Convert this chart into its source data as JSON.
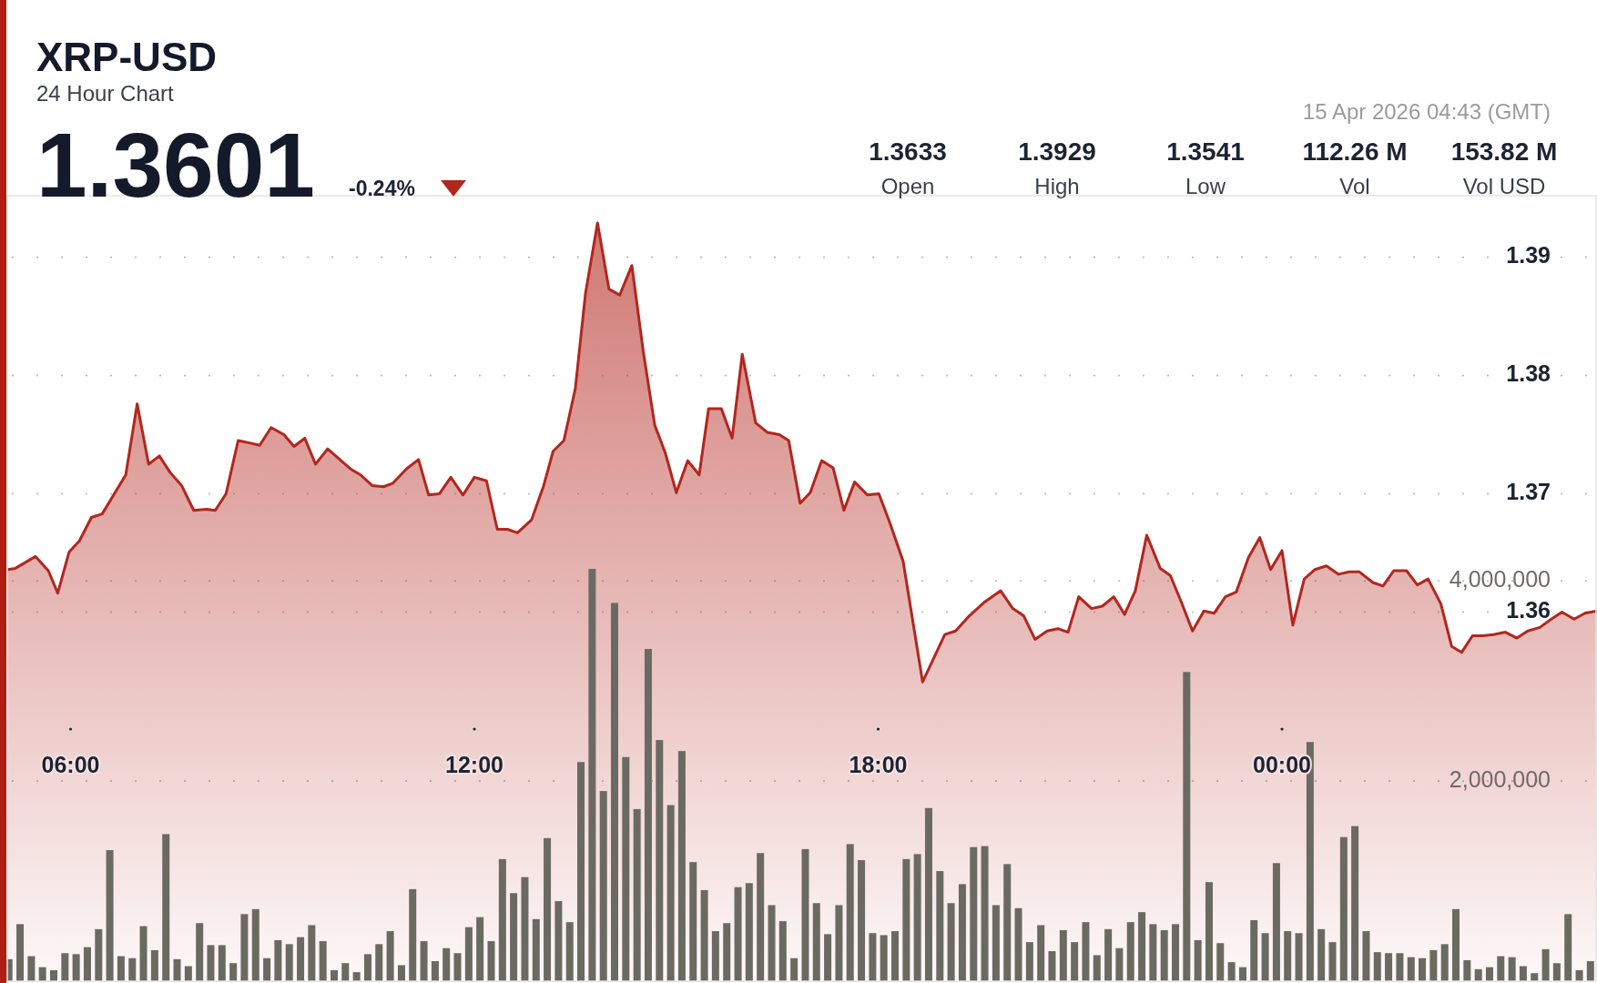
{
  "chart_data": {
    "type": "area",
    "title": "XRP-USD",
    "subtitle": "24 Hour Chart",
    "annotations": [
      "15 Apr 2026 04:43 (GMT)",
      "1.3601",
      "-0.24%",
      "1.3633",
      "Open",
      "1.3929",
      "High",
      "1.3541",
      "Low",
      "112.26 M",
      "Vol",
      "153.82 M",
      "Vol USD"
    ],
    "xlim": [
      5.06,
      28.68
    ],
    "xticks": [
      {
        "value": 6,
        "label": "06:00"
      },
      {
        "value": 12,
        "label": "12:00"
      },
      {
        "value": 18,
        "label": "18:00"
      },
      {
        "value": 24,
        "label": "00:00"
      }
    ],
    "ylim": [
      1.3288,
      1.3952
    ],
    "yticks": [
      1.36,
      1.37,
      1.38,
      1.39
    ],
    "y2lim": [
      0,
      7850000
    ],
    "y2ticks": [
      {
        "value": 2000000,
        "label": "2,000,000"
      },
      {
        "value": 4000000,
        "label": "4,000,000"
      }
    ],
    "grid": "y",
    "series": [
      {
        "color": "#b3261e",
        "x": [
          5.07,
          5.18,
          5.48,
          5.67,
          5.81,
          5.98,
          6.13,
          6.31,
          6.47,
          6.82,
          6.99,
          7.16,
          7.32,
          7.48,
          7.65,
          7.83,
          8.02,
          8.15,
          8.31,
          8.49,
          8.66,
          8.81,
          8.98,
          9.17,
          9.32,
          9.48,
          9.64,
          9.82,
          10.16,
          10.31,
          10.48,
          10.65,
          10.79,
          10.99,
          11.17,
          11.32,
          11.48,
          11.65,
          11.83,
          12.0,
          12.18,
          12.34,
          12.49,
          12.64,
          12.85,
          13.03,
          13.17,
          13.33,
          13.5,
          13.65,
          13.83,
          14.0,
          14.16,
          14.34,
          14.51,
          14.68,
          14.84,
          15.0,
          15.17,
          15.34,
          15.48,
          15.67,
          15.83,
          15.98,
          16.18,
          16.35,
          16.53,
          16.67,
          16.84,
          16.99,
          17.16,
          17.33,
          17.49,
          17.65,
          17.84,
          18.01,
          18.17,
          18.37,
          18.66,
          18.99,
          19.15,
          19.34,
          19.57,
          19.82,
          20.0,
          20.16,
          20.33,
          20.51,
          20.67,
          20.82,
          20.98,
          21.17,
          21.33,
          21.5,
          21.66,
          21.82,
          21.99,
          22.19,
          22.34,
          22.5,
          22.67,
          22.84,
          22.99,
          23.16,
          23.32,
          23.5,
          23.67,
          23.83,
          24.0,
          24.16,
          24.33,
          24.49,
          24.66,
          24.84,
          25.0,
          25.15,
          25.35,
          25.5,
          25.66,
          25.85,
          26.01,
          26.17,
          26.36,
          26.52,
          26.67,
          26.83,
          26.98,
          27.14,
          27.32,
          27.49,
          27.65,
          27.83,
          28.0,
          28.16,
          28.34,
          28.5,
          28.68
        ],
        "values": [
          1.3636,
          1.3637,
          1.3647,
          1.3635,
          1.3616,
          1.3651,
          1.366,
          1.368,
          1.3683,
          1.3716,
          1.3776,
          1.3725,
          1.3732,
          1.3718,
          1.3707,
          1.3686,
          1.3687,
          1.3686,
          1.37,
          1.3745,
          1.3743,
          1.3741,
          1.3756,
          1.375,
          1.374,
          1.3747,
          1.3725,
          1.3738,
          1.3721,
          1.3716,
          1.3707,
          1.3706,
          1.3709,
          1.3721,
          1.3729,
          1.3699,
          1.37,
          1.3714,
          1.3699,
          1.3714,
          1.3711,
          1.367,
          1.367,
          1.3667,
          1.3678,
          1.3707,
          1.3736,
          1.3745,
          1.3789,
          1.3869,
          1.3929,
          1.3873,
          1.3868,
          1.3893,
          1.382,
          1.3758,
          1.3734,
          1.3701,
          1.3728,
          1.3716,
          1.3772,
          1.3772,
          1.3747,
          1.3818,
          1.376,
          1.3752,
          1.375,
          1.3745,
          1.3692,
          1.3701,
          1.3728,
          1.3722,
          1.3686,
          1.371,
          1.3699,
          1.37,
          1.3676,
          1.3643,
          1.3541,
          1.3581,
          1.3584,
          1.3596,
          1.3608,
          1.3618,
          1.3603,
          1.3597,
          1.3577,
          1.3584,
          1.3586,
          1.3583,
          1.3613,
          1.3603,
          1.3605,
          1.3613,
          1.3598,
          1.3618,
          1.3665,
          1.3637,
          1.3631,
          1.3609,
          1.3584,
          1.3601,
          1.3599,
          1.3613,
          1.3617,
          1.3646,
          1.3663,
          1.3636,
          1.3652,
          1.3589,
          1.3628,
          1.3636,
          1.3639,
          1.3632,
          1.3634,
          1.3634,
          1.3625,
          1.3622,
          1.3635,
          1.3635,
          1.3623,
          1.3628,
          1.3607,
          1.3571,
          1.3566,
          1.358,
          1.358,
          1.3581,
          1.3583,
          1.3578,
          1.3584,
          1.3587,
          1.3594,
          1.36,
          1.3594,
          1.3599,
          1.3601
        ]
      },
      {
        "type": "bar",
        "axis": "y2",
        "color": "#6b6a62",
        "x": [
          5.083,
          5.25,
          5.417,
          5.583,
          5.75,
          5.917,
          6.083,
          6.25,
          6.417,
          6.583,
          6.75,
          6.917,
          7.083,
          7.25,
          7.417,
          7.583,
          7.75,
          7.917,
          8.083,
          8.25,
          8.417,
          8.583,
          8.75,
          8.917,
          9.083,
          9.25,
          9.417,
          9.583,
          9.75,
          9.917,
          10.083,
          10.25,
          10.417,
          10.583,
          10.75,
          10.917,
          11.083,
          11.25,
          11.417,
          11.583,
          11.75,
          11.917,
          12.083,
          12.25,
          12.417,
          12.583,
          12.75,
          12.917,
          13.083,
          13.25,
          13.417,
          13.583,
          13.75,
          13.917,
          14.083,
          14.25,
          14.417,
          14.583,
          14.75,
          14.917,
          15.083,
          15.25,
          15.417,
          15.583,
          15.75,
          15.917,
          16.083,
          16.25,
          16.417,
          16.583,
          16.75,
          16.917,
          17.083,
          17.25,
          17.417,
          17.583,
          17.75,
          17.917,
          18.083,
          18.25,
          18.417,
          18.583,
          18.75,
          18.917,
          19.083,
          19.25,
          19.417,
          19.583,
          19.75,
          19.917,
          20.083,
          20.25,
          20.417,
          20.583,
          20.75,
          20.917,
          21.083,
          21.25,
          21.417,
          21.583,
          21.75,
          21.917,
          22.083,
          22.25,
          22.417,
          22.583,
          22.75,
          22.917,
          23.083,
          23.25,
          23.417,
          23.583,
          23.75,
          23.917,
          24.083,
          24.25,
          24.417,
          24.583,
          24.75,
          24.917,
          25.083,
          25.25,
          25.417,
          25.583,
          25.75,
          25.917,
          26.083,
          26.25,
          26.417,
          26.583,
          26.75,
          26.917,
          27.083,
          27.25,
          27.417,
          27.583,
          27.75,
          27.917,
          28.083,
          28.25,
          28.417,
          28.583
        ],
        "values": [
          220000,
          570000,
          250000,
          140000,
          110000,
          280000,
          270000,
          340000,
          520000,
          1310000,
          250000,
          230000,
          550000,
          310000,
          1470000,
          220000,
          150000,
          580000,
          360000,
          360000,
          180000,
          670000,
          720000,
          230000,
          410000,
          370000,
          440000,
          560000,
          400000,
          110000,
          180000,
          90000,
          270000,
          370000,
          500000,
          160000,
          920000,
          400000,
          200000,
          330000,
          280000,
          540000,
          640000,
          400000,
          1220000,
          880000,
          1040000,
          620000,
          1430000,
          800000,
          590000,
          2190000,
          4120000,
          1900000,
          3780000,
          2240000,
          1720000,
          3320000,
          2410000,
          1760000,
          2300000,
          1190000,
          910000,
          500000,
          580000,
          940000,
          980000,
          1280000,
          760000,
          600000,
          230000,
          1320000,
          780000,
          470000,
          760000,
          1370000,
          1210000,
          480000,
          460000,
          500000,
          1220000,
          1270000,
          1730000,
          1100000,
          780000,
          970000,
          1340000,
          1350000,
          760000,
          1170000,
          730000,
          390000,
          560000,
          300000,
          510000,
          390000,
          590000,
          260000,
          520000,
          330000,
          590000,
          690000,
          570000,
          510000,
          570000,
          3090000,
          410000,
          990000,
          380000,
          190000,
          140000,
          610000,
          480000,
          1180000,
          500000,
          480000,
          2390000,
          520000,
          390000,
          1440000,
          1550000,
          500000,
          290000,
          280000,
          280000,
          240000,
          230000,
          310000,
          370000,
          720000,
          210000,
          120000,
          140000,
          250000,
          240000,
          150000,
          80000,
          320000,
          180000,
          670000,
          110000,
          200000
        ]
      }
    ]
  }
}
